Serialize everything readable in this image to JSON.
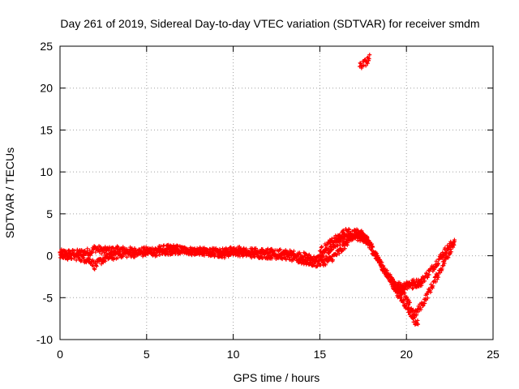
{
  "chart_data": {
    "type": "scatter",
    "title": "Day 261 of 2019, Sidereal Day-to-day VTEC variation (SDTVAR) for receiver smdm",
    "xlabel": "GPS time / hours",
    "ylabel": "SDTVAR / TECUs",
    "xlim": [
      0,
      25
    ],
    "ylim": [
      -10,
      25
    ],
    "xticks": [
      "0",
      "5",
      "10",
      "15",
      "20",
      "25"
    ],
    "yticks": [
      "-10",
      "-5",
      "0",
      "5",
      "10",
      "15",
      "20",
      "25"
    ],
    "grid": true,
    "marker_color": "#ff0000",
    "series": [
      {
        "name": "SDTVAR",
        "tracks": [
          [
            [
              0.0,
              0.3
            ],
            [
              1.0,
              0.3
            ],
            [
              1.8,
              0.5
            ],
            [
              2.0,
              0.9
            ],
            [
              2.5,
              0.6
            ],
            [
              3.5,
              0.7
            ],
            [
              4.5,
              0.5
            ],
            [
              5.5,
              0.7
            ],
            [
              6.5,
              0.9
            ],
            [
              7.5,
              0.6
            ],
            [
              8.5,
              0.5
            ],
            [
              9.5,
              0.4
            ],
            [
              10.0,
              0.8
            ],
            [
              11.0,
              0.5
            ],
            [
              12.0,
              0.4
            ],
            [
              13.0,
              0.3
            ],
            [
              14.0,
              0.0
            ],
            [
              14.8,
              -0.5
            ],
            [
              15.5,
              0.6
            ],
            [
              16.3,
              2.0
            ],
            [
              17.0,
              2.2
            ],
            [
              17.6,
              2.0
            ],
            [
              18.0,
              1.0
            ],
            [
              18.5,
              -1.0
            ],
            [
              19.0,
              -2.5
            ],
            [
              19.5,
              -4.0
            ],
            [
              20.0,
              -3.3
            ],
            [
              20.8,
              -3.2
            ],
            [
              21.5,
              -1.5
            ],
            [
              22.2,
              0.5
            ],
            [
              22.8,
              1.8
            ]
          ],
          [
            [
              0.0,
              0.0
            ],
            [
              1.0,
              -0.1
            ],
            [
              1.8,
              -0.6
            ],
            [
              2.0,
              -1.2
            ],
            [
              2.5,
              -0.4
            ],
            [
              3.5,
              0.2
            ],
            [
              4.5,
              0.3
            ],
            [
              5.5,
              0.4
            ],
            [
              6.5,
              0.6
            ],
            [
              7.5,
              0.5
            ],
            [
              8.5,
              0.4
            ],
            [
              9.5,
              0.2
            ],
            [
              10.0,
              0.5
            ],
            [
              11.0,
              0.2
            ],
            [
              12.0,
              0.1
            ],
            [
              13.0,
              0.0
            ],
            [
              14.0,
              -0.6
            ],
            [
              14.8,
              -0.9
            ],
            [
              15.5,
              -0.6
            ],
            [
              16.2,
              0.6
            ],
            [
              17.0,
              2.8
            ],
            [
              17.6,
              2.4
            ],
            [
              18.0,
              0.8
            ],
            [
              18.8,
              -2.0
            ],
            [
              19.5,
              -4.5
            ],
            [
              20.0,
              -6.0
            ],
            [
              20.5,
              -7.8
            ],
            [
              20.7,
              -8.2
            ]
          ],
          [
            [
              15.0,
              0.5
            ],
            [
              15.8,
              1.8
            ],
            [
              16.5,
              2.8
            ],
            [
              17.2,
              2.6
            ],
            [
              17.8,
              1.8
            ]
          ],
          [
            [
              19.5,
              -3.0
            ],
            [
              19.8,
              -4.5
            ],
            [
              20.2,
              -6.0
            ],
            [
              20.5,
              -7.0
            ],
            [
              21.0,
              -5.5
            ],
            [
              21.5,
              -3.5
            ],
            [
              22.0,
              -1.5
            ],
            [
              22.5,
              0.5
            ],
            [
              22.8,
              2.0
            ]
          ],
          [
            [
              19.2,
              -3.5
            ],
            [
              19.6,
              -4.2
            ],
            [
              20.1,
              -3.6
            ],
            [
              20.9,
              -3.3
            ]
          ],
          [
            [
              17.3,
              22.6
            ],
            [
              17.6,
              23.0
            ],
            [
              17.9,
              23.6
            ]
          ]
        ]
      }
    ]
  }
}
